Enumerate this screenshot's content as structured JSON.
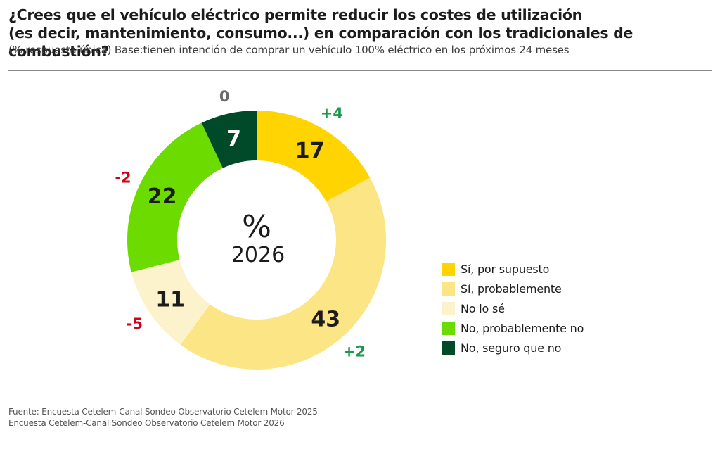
{
  "header": {
    "title_line1": "¿Crees que el vehículo eléctrico permite reducir los costes de utilización",
    "title_line2": "(es decir, mantenimiento, consumo...) en comparación con los tradicionales de combustión?",
    "subtitle": "(% respuesta única) Base:tienen intención de comprar un vehículo 100% eléctrico en los próximos 24 meses"
  },
  "chart_data": {
    "type": "pie",
    "variant": "donut",
    "title": "¿Crees que el vehículo eléctrico permite reducir los costes de utilización (es decir, mantenimiento, consumo...) en comparación con los tradicionales de combustión?",
    "center_label": "%",
    "center_sublabel": "2026",
    "unit": "%",
    "start_angle": "12 o'clock",
    "direction": "clockwise",
    "categories": [
      "Sí, por supuesto",
      "Sí, probablemente",
      "No lo sé",
      "No, probablemente no",
      "No, seguro que no"
    ],
    "values": [
      17,
      43,
      11,
      22,
      7
    ],
    "deltas": [
      "+4",
      "+2",
      "-5",
      "-2",
      "0"
    ],
    "delta_colors": [
      "#1a9a4a",
      "#1a9a4a",
      "#d0021b",
      "#d0021b",
      "#6b6b6b"
    ],
    "colors": [
      "#ffd400",
      "#fbe584",
      "#fcf3cc",
      "#6cdb00",
      "#004a2a"
    ],
    "label_colors": [
      "#1c1c1c",
      "#1c1c1c",
      "#1c1c1c",
      "#1c1c1c",
      "#ffffff"
    ],
    "legend_position": "right"
  },
  "legend": {
    "items": [
      {
        "label": "Sí, por supuesto",
        "color": "#ffd400"
      },
      {
        "label": "Sí, probablemente",
        "color": "#fbe584"
      },
      {
        "label": "No lo sé",
        "color": "#fcf3cc"
      },
      {
        "label": "No, probablemente no",
        "color": "#6cdb00"
      },
      {
        "label": "No, seguro que no",
        "color": "#004a2a"
      }
    ]
  },
  "footer": {
    "source_line1": "Fuente: Encuesta Cetelem-Canal Sondeo Observatorio Cetelem Motor 2025",
    "source_line2": "Encuesta Cetelem-Canal Sondeo Observatorio Cetelem Motor 2026"
  }
}
